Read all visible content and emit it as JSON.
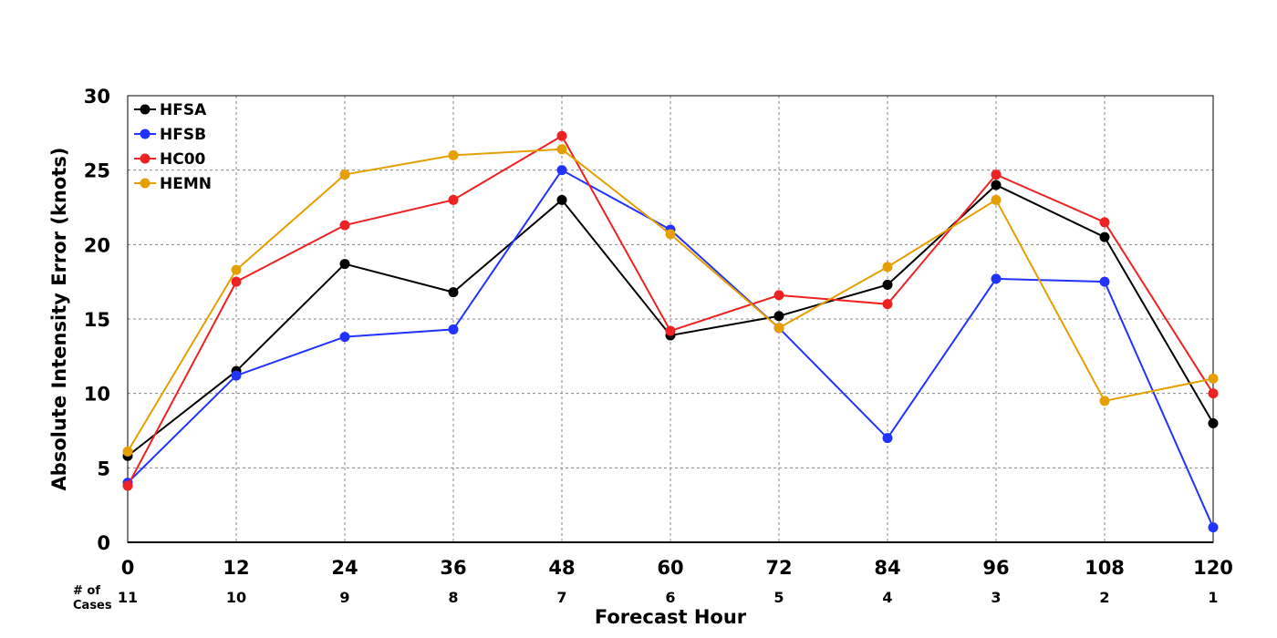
{
  "chart_data": {
    "type": "line",
    "xlabel": "Forecast Hour",
    "ylabel": "Absolute Intensity Error (knots)",
    "x": [
      0,
      12,
      24,
      36,
      48,
      60,
      72,
      84,
      96,
      108,
      120
    ],
    "x_ticks": [
      "0",
      "12",
      "24",
      "36",
      "48",
      "60",
      "72",
      "84",
      "96",
      "108",
      "120"
    ],
    "xlim": [
      0,
      120
    ],
    "ylim": [
      0,
      30
    ],
    "y_ticks": [
      "0",
      "5",
      "10",
      "15",
      "20",
      "25",
      "30"
    ],
    "grid": true,
    "legend_position": "top-left",
    "cases_title": [
      "# of",
      "Cases"
    ],
    "cases": [
      "11",
      "10",
      "9",
      "8",
      "7",
      "6",
      "5",
      "4",
      "3",
      "2",
      "1"
    ],
    "series": [
      {
        "name": "HFSA",
        "color": "#000000",
        "values": [
          5.8,
          11.5,
          18.7,
          16.8,
          23.0,
          13.9,
          15.2,
          17.3,
          24.0,
          20.5,
          8.0
        ]
      },
      {
        "name": "HFSB",
        "color": "#2233ff",
        "values": [
          4.0,
          11.2,
          13.8,
          14.3,
          25.0,
          21.0,
          14.4,
          7.0,
          17.7,
          17.5,
          1.0
        ]
      },
      {
        "name": "HC00",
        "color": "#ee2222",
        "values": [
          3.8,
          17.5,
          21.3,
          23.0,
          27.3,
          14.2,
          16.6,
          16.0,
          24.7,
          21.5,
          10.0
        ]
      },
      {
        "name": "HEMN",
        "color": "#e69f00",
        "values": [
          6.1,
          18.3,
          24.7,
          26.0,
          26.4,
          20.7,
          14.4,
          18.5,
          23.0,
          9.5,
          11.0
        ]
      }
    ]
  }
}
